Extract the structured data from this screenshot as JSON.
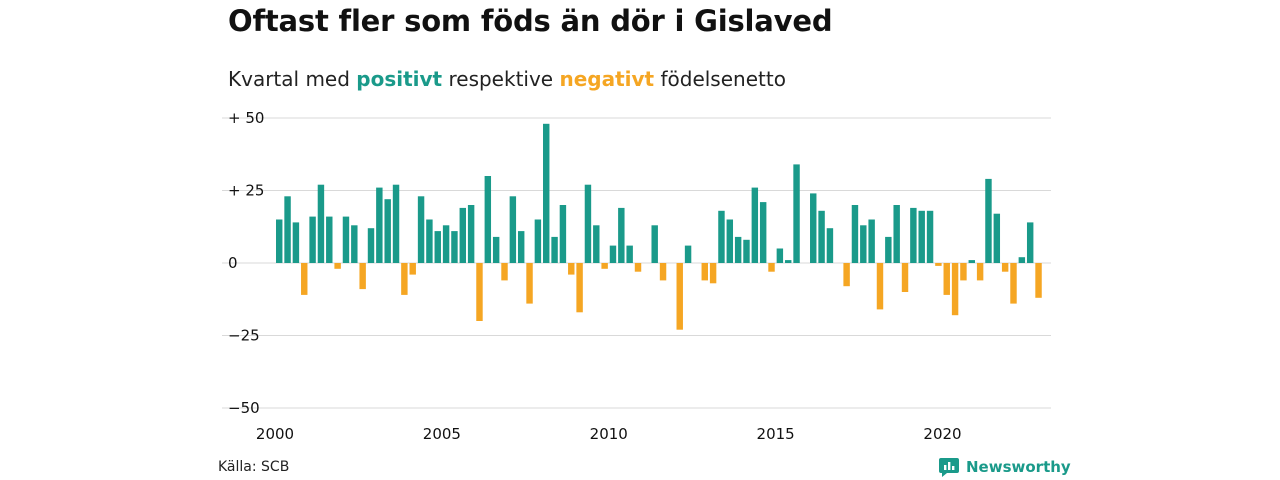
{
  "header": {
    "title": "Oftast fler som föds än dör i Gislaved",
    "subtitle_prefix": "Kvartal med ",
    "subtitle_positive": "positivt",
    "subtitle_mid": " respektive ",
    "subtitle_negative": "negativt",
    "subtitle_suffix": " födelsenetto"
  },
  "footer": {
    "source": "Källa: SCB",
    "brand": "Newsworthy"
  },
  "colors": {
    "positive": "#1a9a8a",
    "negative": "#f5a623",
    "grid": "#d9d9d9",
    "brand": "#1a9a8a"
  },
  "icons": {
    "brand_logo": "chart-speech-bubble-icon"
  },
  "chart_data": {
    "type": "bar",
    "title": "Oftast fler som föds än dör i Gislaved",
    "subtitle": "Kvartal med positivt respektive negativt födelsenetto",
    "xlabel": "",
    "ylabel": "",
    "ylim": [
      -50,
      50
    ],
    "yticks": [
      50,
      25,
      0,
      -25,
      -50
    ],
    "ytick_labels": [
      "+ 50",
      "+ 25",
      "0",
      "−25",
      "−50"
    ],
    "xlim": [
      2000,
      2023.25
    ],
    "xticks": [
      2000,
      2005,
      2010,
      2015,
      2020
    ],
    "xtick_labels": [
      "2000",
      "2005",
      "2010",
      "2015",
      "2020"
    ],
    "grid": true,
    "start_year": 2000,
    "periods_per_year": 4,
    "values": [
      15,
      23,
      14,
      -11,
      16,
      27,
      16,
      -2,
      16,
      13,
      -9,
      12,
      26,
      22,
      27,
      -11,
      -4,
      23,
      15,
      11,
      13,
      11,
      19,
      20,
      -20,
      30,
      9,
      -6,
      23,
      11,
      -14,
      15,
      48,
      9,
      20,
      -4,
      -17,
      27,
      13,
      -2,
      6,
      19,
      6,
      -3,
      0,
      13,
      -6,
      0,
      -23,
      6,
      0,
      -6,
      -7,
      18,
      15,
      9,
      8,
      26,
      21,
      -3,
      5,
      1,
      34,
      0,
      24,
      18,
      12,
      0,
      -8,
      20,
      13,
      15,
      -16,
      9,
      20,
      -10,
      19,
      18,
      18,
      -1,
      -11,
      -18,
      -6,
      1,
      -6,
      29,
      17,
      -3,
      -14,
      2,
      14,
      -12
    ]
  }
}
